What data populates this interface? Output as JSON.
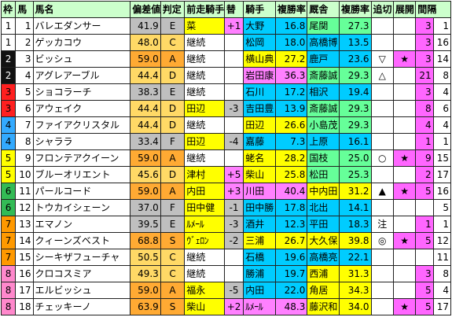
{
  "headers": {
    "waku": "枠",
    "uma": "馬",
    "name": "馬名",
    "hensa": "偏差値",
    "hantei": "判定",
    "zenso": "前走騎手",
    "kae": "替",
    "jockey": "騎手",
    "jrate": "複勝率",
    "trainer": "厩舎",
    "trate": "複勝率",
    "oikiri": "追切",
    "tenkai": "展開",
    "kankaku": "間隔"
  },
  "rows": [
    {
      "waku": "1",
      "uma": "1",
      "name": "バレエダンサー",
      "hensa": "41.9",
      "hantei": "E",
      "zenso": "菜",
      "kae": "+1",
      "jockey": "大野",
      "jrate": "16.8",
      "trainer": "尾関",
      "trate": "27.3",
      "oikiri": "",
      "tenkai": "",
      "kankaku_a": "3",
      "kankaku_b": "1"
    },
    {
      "waku": "1",
      "uma": "2",
      "name": "ゲッカコウ",
      "hensa": "48.0",
      "hantei": "C",
      "zenso": "継続",
      "kae": "",
      "jockey": "松岡",
      "jrate": "18.0",
      "trainer": "高橋博",
      "trate": "13.5",
      "oikiri": "",
      "tenkai": "",
      "kankaku_a": "3",
      "kankaku_b": "16"
    },
    {
      "waku": "2",
      "uma": "3",
      "name": "ビッシュ",
      "hensa": "59.0",
      "hantei": "A",
      "zenso": "継続",
      "kae": "",
      "jockey": "横山典",
      "jrate": "27.2",
      "trainer": "鹿戸",
      "trate": "23.6",
      "oikiri": "▽",
      "tenkai": "★",
      "kankaku_a": "3",
      "kankaku_b": "14"
    },
    {
      "waku": "2",
      "uma": "4",
      "name": "アグレアーブル",
      "hensa": "44.4",
      "hantei": "D",
      "zenso": "継続",
      "kae": "",
      "jockey": "岩田康",
      "jrate": "36.3",
      "trainer": "斎藤誠",
      "trate": "29.3",
      "oikiri": "△",
      "tenkai": "",
      "kankaku_a": "21",
      "kankaku_b": "8"
    },
    {
      "waku": "3",
      "uma": "5",
      "name": "ショコラーチ",
      "hensa": "38.3",
      "hantei": "E",
      "zenso": "継続",
      "kae": "",
      "jockey": "石川",
      "jrate": "17.2",
      "trainer": "相沢",
      "trate": "19.4",
      "oikiri": "",
      "tenkai": "",
      "kankaku_a": "3",
      "kankaku_b": "4"
    },
    {
      "waku": "3",
      "uma": "6",
      "name": "アウェイク",
      "hensa": "44.4",
      "hantei": "D",
      "zenso": "田辺",
      "kae": "-3",
      "jockey": "吉田豊",
      "jrate": "13.9",
      "trainer": "斎藤誠",
      "trate": "29.3",
      "oikiri": "",
      "tenkai": "",
      "kankaku_a": "8",
      "kankaku_b": "6"
    },
    {
      "waku": "4",
      "uma": "7",
      "name": "ファイアクリスタル",
      "hensa": "44.4",
      "hantei": "D",
      "zenso": "継続",
      "kae": "",
      "jockey": "田辺",
      "jrate": "26.6",
      "trainer": "小島茂",
      "trate": "29.3",
      "oikiri": "",
      "tenkai": "",
      "kankaku_a": "4",
      "kankaku_b": "4"
    },
    {
      "waku": "4",
      "uma": "8",
      "name": "シャララ",
      "hensa": "33.4",
      "hantei": "F",
      "zenso": "田辺",
      "kae": "-4",
      "jockey": "嘉藤",
      "jrate": "7.3",
      "trainer": "上原",
      "trate": "16.1",
      "oikiri": "",
      "tenkai": "",
      "kankaku_a": "1",
      "kankaku_b": "1"
    },
    {
      "waku": "5",
      "uma": "9",
      "name": "フロンテアクイーン",
      "hensa": "59.0",
      "hantei": "A",
      "zenso": "継続",
      "kae": "",
      "jockey": "蛯名",
      "jrate": "28.2",
      "trainer": "国枝",
      "trate": "25.0",
      "oikiri": "○",
      "tenkai": "★",
      "kankaku_a": "9",
      "kankaku_b": "15"
    },
    {
      "waku": "5",
      "uma": "10",
      "name": "ブルーオリエント",
      "hensa": "45.6",
      "hantei": "D",
      "zenso": "津村",
      "kae": "+5",
      "jockey": "柴山",
      "jrate": "25.8",
      "trainer": "松田",
      "trate": "25.3",
      "oikiri": "",
      "tenkai": "",
      "kankaku_a": "2",
      "kankaku_b": "17"
    },
    {
      "waku": "6",
      "uma": "11",
      "name": "パールコード",
      "hensa": "59.0",
      "hantei": "A",
      "zenso": "内田",
      "kae": "+3",
      "jockey": "川田",
      "jrate": "40.4",
      "trainer": "中内田",
      "trate": "31.2",
      "oikiri": "▲",
      "tenkai": "★",
      "kankaku_a": "5",
      "kankaku_b": "16"
    },
    {
      "waku": "6",
      "uma": "12",
      "name": "トウカイシェーン",
      "hensa": "37.0",
      "hantei": "F",
      "zenso": "田中健",
      "kae": "-1",
      "jockey": "田中勝",
      "jrate": "17.8",
      "trainer": "北出",
      "trate": "14.1",
      "oikiri": "",
      "tenkai": "",
      "kankaku_a": "",
      "kankaku_b": "5"
    },
    {
      "waku": "7",
      "uma": "13",
      "name": "エマノン",
      "hensa": "39.5",
      "hantei": "E",
      "zenso": "ﾙﾒｰﾙ",
      "kae": "-3",
      "jockey": "酒井",
      "jrate": "12.3",
      "trainer": "平田",
      "trate": "18.3",
      "oikiri": "注",
      "tenkai": "",
      "kankaku_a": "1",
      "kankaku_b": "1"
    },
    {
      "waku": "7",
      "uma": "14",
      "name": "クィーンズベスト",
      "hensa": "68.8",
      "hantei": "S",
      "zenso": "ｳﾞｪﾛﾝ",
      "kae": "-2",
      "jockey": "三浦",
      "jrate": "26.7",
      "trainer": "大久保",
      "trate": "39.8",
      "oikiri": "◎",
      "tenkai": "★",
      "kankaku_a": "5",
      "kankaku_b": "12"
    },
    {
      "waku": "7",
      "uma": "15",
      "name": "シーキザフューチャ",
      "hensa": "50.5",
      "hantei": "C",
      "zenso": "継続",
      "kae": "",
      "jockey": "石橋",
      "jrate": "19.6",
      "trainer": "高橋亮",
      "trate": "22.1",
      "oikiri": "",
      "tenkai": "",
      "kankaku_a": "",
      "kankaku_b": "11"
    },
    {
      "waku": "8",
      "uma": "16",
      "name": "クロコスミア",
      "hensa": "49.3",
      "hantei": "C",
      "zenso": "継続",
      "kae": "",
      "jockey": "勝浦",
      "jrate": "19.7",
      "trainer": "西浦",
      "trate": "31.3",
      "oikiri": "",
      "tenkai": "",
      "kankaku_a": "3",
      "kankaku_b": "8"
    },
    {
      "waku": "8",
      "uma": "17",
      "name": "エルビッシュ",
      "hensa": "59.0",
      "hantei": "A",
      "zenso": "福永",
      "kae": "-5",
      "jockey": "内田",
      "jrate": "22.0",
      "trainer": "角居",
      "trate": "34.3",
      "oikiri": "",
      "tenkai": "",
      "kankaku_a": "5",
      "kankaku_b": "4"
    },
    {
      "waku": "8",
      "uma": "18",
      "name": "チェッキーノ",
      "hensa": "63.9",
      "hantei": "S",
      "zenso": "柴山",
      "kae": "+2",
      "jockey": "ﾙﾒｰﾙ",
      "jrate": "48.3",
      "trainer": "藤沢和",
      "trate": "34.0",
      "oikiri": "",
      "tenkai": "★",
      "kankaku_a": "5",
      "kankaku_b": "17"
    }
  ],
  "colors": {
    "header": "#ccffcc",
    "waku": {
      "1": "#ffffff",
      "2": "#111111",
      "3": "#ff2020",
      "4": "#33aaff",
      "5": "#ffff00",
      "6": "#33bb55",
      "7": "#ff9900",
      "8": "#ff88cc"
    },
    "hensa_high": "#ffaa33",
    "hensa_mid": "#ffd966",
    "hensa_low": "#bfbfbf",
    "zenso_changed": "#ffff00",
    "kae_plus": "#ff80ff",
    "kae_minus": "#bfbfbf",
    "jockey_top": "#ff80ff",
    "jockey_mid": "#ffff00",
    "jockey_low": "#00ccff",
    "trainer_top": "#ffff00",
    "trainer_mid": "#66ff99",
    "trainer_low": "#00ccff",
    "tenkai": "#ff66ff",
    "kankaku_a": "#ff66ff"
  }
}
